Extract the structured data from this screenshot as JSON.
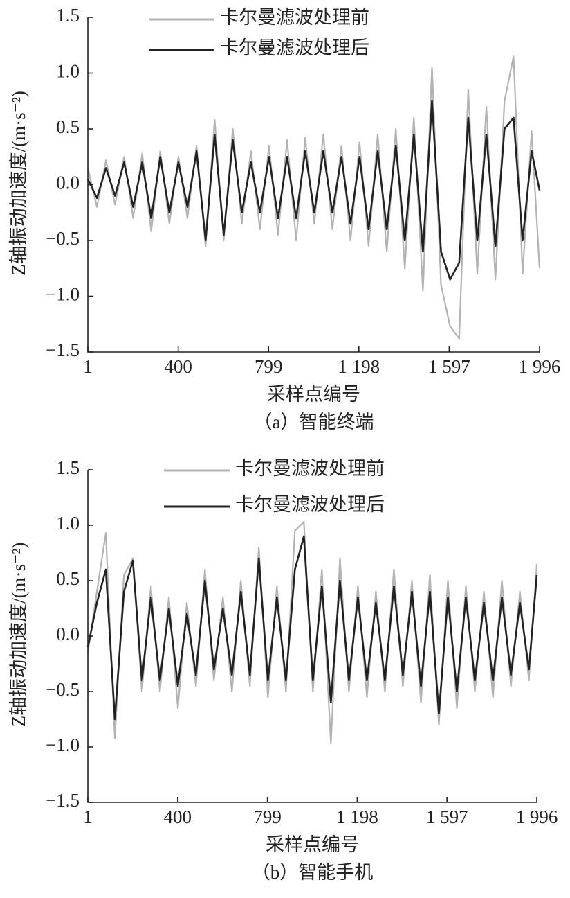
{
  "chart_data": [
    {
      "type": "line",
      "ylabel": "Z轴振动加速度/(m·s⁻²)",
      "xlabel": "采样点编号",
      "caption": "（a）智能终端",
      "x": [
        1,
        41,
        81,
        121,
        161,
        201,
        241,
        281,
        321,
        361,
        401,
        441,
        481,
        521,
        561,
        601,
        641,
        681,
        721,
        761,
        801,
        841,
        881,
        921,
        961,
        1001,
        1041,
        1081,
        1121,
        1161,
        1201,
        1241,
        1281,
        1321,
        1361,
        1401,
        1441,
        1481,
        1521,
        1561,
        1601,
        1641,
        1681,
        1721,
        1761,
        1801,
        1841,
        1881,
        1921,
        1961,
        1996
      ],
      "series": [
        {
          "name": "卡尔曼滤波处理前",
          "color": "#b3b3b3",
          "values": [
            0.15,
            -0.2,
            0.22,
            -0.18,
            0.25,
            -0.3,
            0.28,
            -0.42,
            0.3,
            -0.35,
            0.25,
            -0.3,
            0.35,
            -0.55,
            0.58,
            -0.5,
            0.5,
            -0.35,
            0.3,
            -0.4,
            0.35,
            -0.45,
            0.4,
            -0.5,
            0.42,
            -0.35,
            0.45,
            -0.4,
            0.35,
            -0.5,
            0.38,
            -0.55,
            0.45,
            -0.6,
            0.5,
            -0.75,
            0.6,
            -0.95,
            1.05,
            -0.9,
            -1.27,
            -1.38,
            0.85,
            -0.8,
            0.7,
            -0.85,
            0.75,
            1.15,
            -0.8,
            0.48,
            -0.75
          ]
        },
        {
          "name": "卡尔曼滤波处理后",
          "color": "#222222",
          "values": [
            0.05,
            -0.12,
            0.15,
            -0.1,
            0.2,
            -0.2,
            0.2,
            -0.3,
            0.25,
            -0.25,
            0.2,
            -0.2,
            0.3,
            -0.5,
            0.45,
            -0.45,
            0.4,
            -0.25,
            0.2,
            -0.25,
            0.25,
            -0.3,
            0.25,
            -0.3,
            0.3,
            -0.25,
            0.3,
            -0.25,
            0.25,
            -0.35,
            0.25,
            -0.4,
            0.3,
            -0.4,
            0.35,
            -0.5,
            0.45,
            -0.6,
            0.75,
            -0.6,
            -0.85,
            -0.7,
            0.6,
            -0.5,
            0.45,
            -0.55,
            0.5,
            0.6,
            -0.5,
            0.3,
            -0.05
          ]
        }
      ],
      "xlim": [
        1,
        1996
      ],
      "xticks": [
        1,
        400,
        799,
        {
          "value": 1198,
          "label": "1 198"
        },
        {
          "value": 1597,
          "label": "1 597"
        },
        {
          "value": 1996,
          "label": "1 996"
        }
      ],
      "ylim": [
        -1.5,
        1.5
      ],
      "yticks": [
        {
          "value": -1.5,
          "label": "−1.5"
        },
        {
          "value": -1,
          "label": "−1.0"
        },
        {
          "value": -0.5,
          "label": "−0.5"
        },
        {
          "value": 0,
          "label": "0.0"
        },
        0.5,
        {
          "value": 1,
          "label": "1.0"
        },
        1.5
      ]
    },
    {
      "type": "line",
      "ylabel": "Z轴振动加速度/(m·s⁻²)",
      "xlabel": "采样点编号",
      "caption": "（b）智能手机",
      "x": [
        1,
        41,
        81,
        121,
        161,
        201,
        241,
        281,
        321,
        361,
        401,
        441,
        481,
        521,
        561,
        601,
        641,
        681,
        721,
        761,
        801,
        841,
        881,
        921,
        961,
        1001,
        1041,
        1081,
        1121,
        1161,
        1201,
        1241,
        1281,
        1321,
        1361,
        1401,
        1441,
        1481,
        1521,
        1561,
        1601,
        1641,
        1681,
        1721,
        1761,
        1801,
        1841,
        1881,
        1921,
        1961,
        1996
      ],
      "series": [
        {
          "name": "卡尔曼滤波处理前",
          "color": "#b3b3b3",
          "values": [
            -0.15,
            0.4,
            0.93,
            -0.92,
            0.55,
            0.7,
            -0.5,
            0.45,
            -0.5,
            0.35,
            -0.65,
            0.3,
            -0.45,
            0.6,
            -0.4,
            0.35,
            -0.5,
            0.5,
            -0.45,
            0.8,
            -0.55,
            0.45,
            -0.5,
            0.95,
            1.03,
            -0.5,
            0.6,
            -0.97,
            0.7,
            -0.5,
            0.45,
            -0.55,
            0.4,
            -0.5,
            0.6,
            -0.45,
            0.5,
            -0.6,
            0.55,
            -0.8,
            0.5,
            -0.65,
            0.45,
            -0.5,
            0.4,
            -0.55,
            0.5,
            -0.45,
            0.4,
            -0.4,
            0.65
          ]
        },
        {
          "name": "卡尔曼滤波处理后",
          "color": "#222222",
          "values": [
            -0.1,
            0.3,
            0.6,
            -0.75,
            0.4,
            0.68,
            -0.4,
            0.35,
            -0.4,
            0.25,
            -0.45,
            0.2,
            -0.35,
            0.5,
            -0.3,
            0.25,
            -0.35,
            0.4,
            -0.35,
            0.7,
            -0.4,
            0.35,
            -0.4,
            0.6,
            0.9,
            -0.4,
            0.45,
            -0.6,
            0.5,
            -0.4,
            0.35,
            -0.4,
            0.3,
            -0.4,
            0.45,
            -0.35,
            0.4,
            -0.45,
            0.4,
            -0.7,
            0.35,
            -0.5,
            0.35,
            -0.4,
            0.3,
            -0.4,
            0.35,
            -0.35,
            0.3,
            -0.3,
            0.55
          ]
        }
      ],
      "xlim": [
        1,
        1996
      ],
      "xticks": [
        1,
        400,
        799,
        {
          "value": 1198,
          "label": "1 198"
        },
        {
          "value": 1597,
          "label": "1 597"
        },
        {
          "value": 1996,
          "label": "1 996"
        }
      ],
      "ylim": [
        -1.5,
        1.5
      ],
      "yticks": [
        {
          "value": -1.5,
          "label": "−1.5"
        },
        {
          "value": -1,
          "label": "−1.0"
        },
        {
          "value": -0.5,
          "label": "−0.5"
        },
        {
          "value": 0,
          "label": "0.0"
        },
        0.5,
        {
          "value": 1,
          "label": "1.0"
        },
        1.5
      ]
    }
  ]
}
